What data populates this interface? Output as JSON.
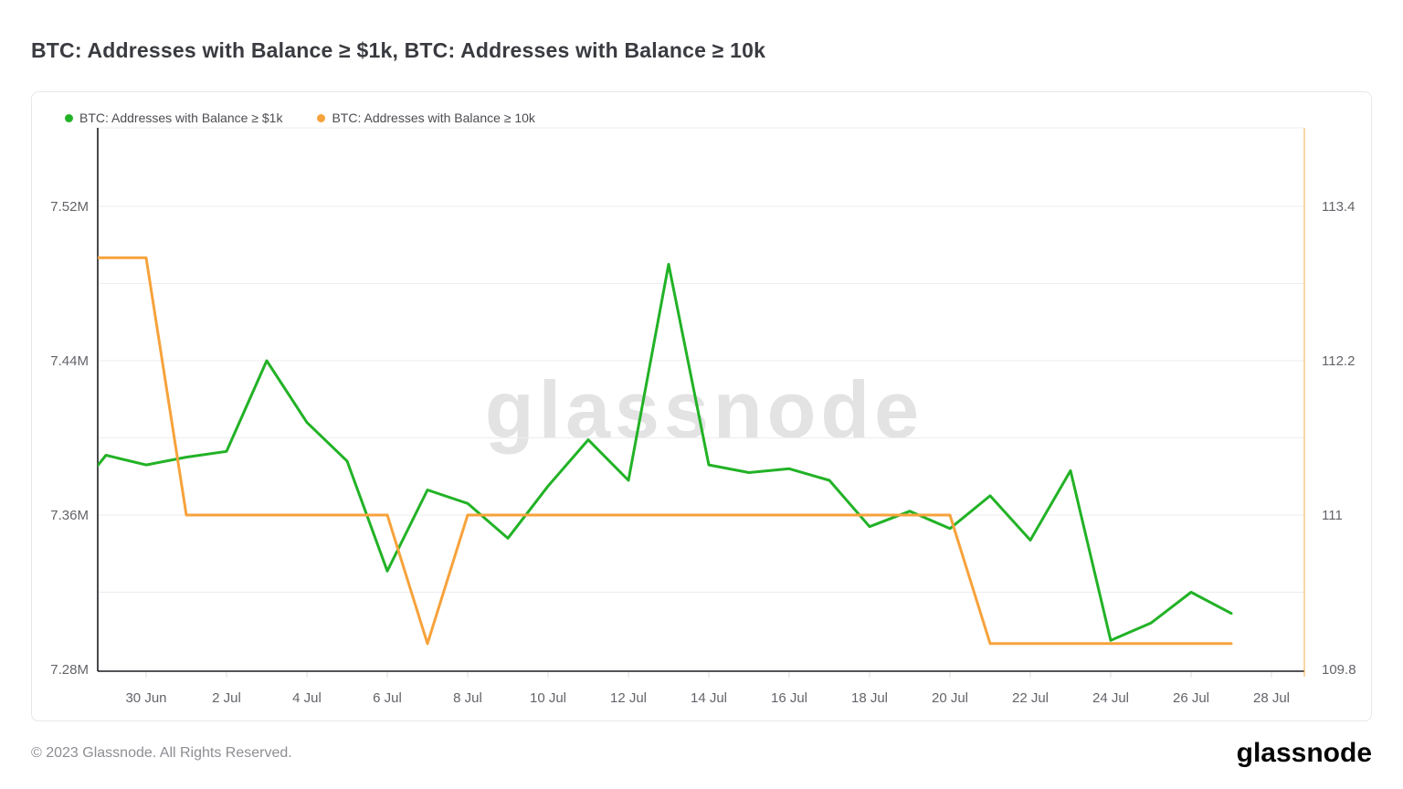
{
  "header": {
    "title": "BTC: Addresses with Balance ≥ $1k, BTC: Addresses with Balance ≥ 10k"
  },
  "watermark": {
    "text": "glassnode"
  },
  "footer": {
    "copyright": "© 2023 Glassnode. All Rights Reserved.",
    "logo_text": "glassnode"
  },
  "chart_data": {
    "type": "line",
    "title": "BTC: Addresses with Balance ≥ $1k, BTC: Addresses with Balance ≥ 10k",
    "grid": "horizontal-only",
    "legend_position": "top-left",
    "x": [
      "28 Jun",
      "29 Jun",
      "30 Jun",
      "1 Jul",
      "2 Jul",
      "3 Jul",
      "4 Jul",
      "5 Jul",
      "6 Jul",
      "7 Jul",
      "8 Jul",
      "9 Jul",
      "10 Jul",
      "11 Jul",
      "12 Jul",
      "13 Jul",
      "14 Jul",
      "15 Jul",
      "16 Jul",
      "17 Jul",
      "18 Jul",
      "19 Jul",
      "20 Jul",
      "21 Jul",
      "22 Jul",
      "23 Jul",
      "24 Jul",
      "25 Jul",
      "26 Jul",
      "27 Jul"
    ],
    "x_ticks": [
      "30 Jun",
      "2 Jul",
      "4 Jul",
      "6 Jul",
      "8 Jul",
      "10 Jul",
      "12 Jul",
      "14 Jul",
      "16 Jul",
      "18 Jul",
      "20 Jul",
      "22 Jul",
      "24 Jul",
      "26 Jul",
      "28 Jul"
    ],
    "left_axis": {
      "min": 7.28,
      "max": 7.52,
      "unit": "M",
      "tick_labels": [
        "7.52M",
        "7.44M",
        "7.36M",
        "7.28M"
      ],
      "tick_values": [
        7.52,
        7.44,
        7.36,
        7.28
      ]
    },
    "right_axis": {
      "min": 109.8,
      "max": 113.4,
      "tick_labels": [
        "113.4",
        "112.2",
        "111",
        "109.8"
      ],
      "tick_values": [
        113.4,
        112.2,
        111,
        109.8
      ]
    },
    "series": [
      {
        "name": "BTC: Addresses with Balance ≥ $1k",
        "axis": "left",
        "color": "#22b226",
        "unit": "M",
        "values": [
          7.365,
          7.391,
          7.386,
          7.39,
          7.393,
          7.44,
          7.408,
          7.388,
          7.331,
          7.373,
          7.366,
          7.348,
          7.375,
          7.399,
          7.378,
          7.49,
          7.386,
          7.382,
          7.384,
          7.378,
          7.354,
          7.362,
          7.353,
          7.37,
          7.347,
          7.383,
          7.295,
          7.304,
          7.32,
          7.309
        ]
      },
      {
        "name": "BTC: Addresses with Balance ≥ 10k",
        "axis": "right",
        "color": "#f7a23b",
        "unit": "addresses",
        "values": [
          113,
          113,
          113,
          111,
          111,
          111,
          111,
          111,
          111,
          110,
          111,
          111,
          111,
          111,
          111,
          111,
          111,
          111,
          111,
          111,
          111,
          111,
          111,
          110,
          110,
          110,
          110,
          110,
          110,
          110
        ]
      }
    ],
    "style": {
      "left_axis_line_color": "#1b1c20",
      "bottom_axis_line_color": "#1b1c20",
      "right_axis_line_color": "rgba(247,162,59,0.45)",
      "gridline_color": "#ededef",
      "tick_color": "#dddde0"
    }
  }
}
